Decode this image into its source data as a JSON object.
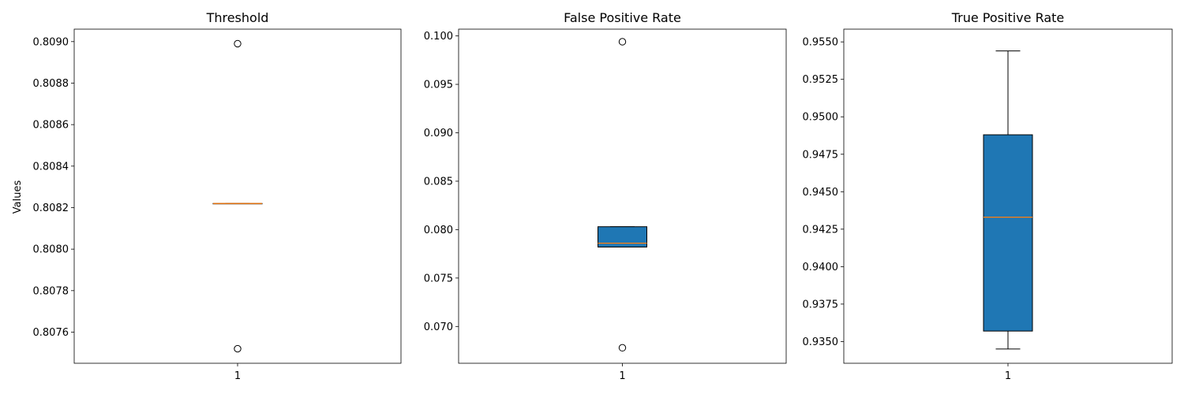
{
  "figure": {
    "ylabel": "Values"
  },
  "chart_data": [
    {
      "type": "box",
      "title": "Threshold",
      "categories": [
        "1"
      ],
      "ylim": [
        0.80745,
        0.80906
      ],
      "yticks": [
        0.8076,
        0.8078,
        0.808,
        0.8082,
        0.8084,
        0.8086,
        0.8088,
        0.809
      ],
      "ytick_labels": [
        "0.8076",
        "0.8078",
        "0.8080",
        "0.8082",
        "0.8084",
        "0.8086",
        "0.8088",
        "0.8090"
      ],
      "box": {
        "whislo": 0.80822,
        "q1": 0.80822,
        "med": 0.80822,
        "q3": 0.80822,
        "whishi": 0.80822
      },
      "fliers": [
        0.80899,
        0.80752
      ],
      "box_color": "#1f77b4",
      "median_color": "#ff7f0e"
    },
    {
      "type": "box",
      "title": "False Positive Rate",
      "categories": [
        "1"
      ],
      "ylim": [
        0.0662,
        0.1007
      ],
      "yticks": [
        0.07,
        0.075,
        0.08,
        0.085,
        0.09,
        0.095,
        0.1
      ],
      "ytick_labels": [
        "0.070",
        "0.075",
        "0.080",
        "0.085",
        "0.090",
        "0.095",
        "0.100"
      ],
      "box": {
        "whislo": 0.0782,
        "q1": 0.0782,
        "med": 0.0786,
        "q3": 0.0803,
        "whishi": 0.0803
      },
      "fliers": [
        0.0994,
        0.0678
      ],
      "box_color": "#1f77b4",
      "median_color": "#ff7f0e"
    },
    {
      "type": "box",
      "title": "True Positive Rate",
      "categories": [
        "1"
      ],
      "ylim": [
        0.93355,
        0.95585
      ],
      "yticks": [
        0.935,
        0.9375,
        0.94,
        0.9425,
        0.945,
        0.9475,
        0.95,
        0.9525,
        0.955
      ],
      "ytick_labels": [
        "0.9350",
        "0.9375",
        "0.9400",
        "0.9425",
        "0.9450",
        "0.9475",
        "0.9500",
        "0.9525",
        "0.9550"
      ],
      "box": {
        "whislo": 0.9345,
        "q1": 0.9357,
        "med": 0.9433,
        "q3": 0.9488,
        "whishi": 0.9544
      },
      "fliers": [],
      "box_color": "#1f77b4",
      "median_color": "#ff7f0e"
    }
  ]
}
